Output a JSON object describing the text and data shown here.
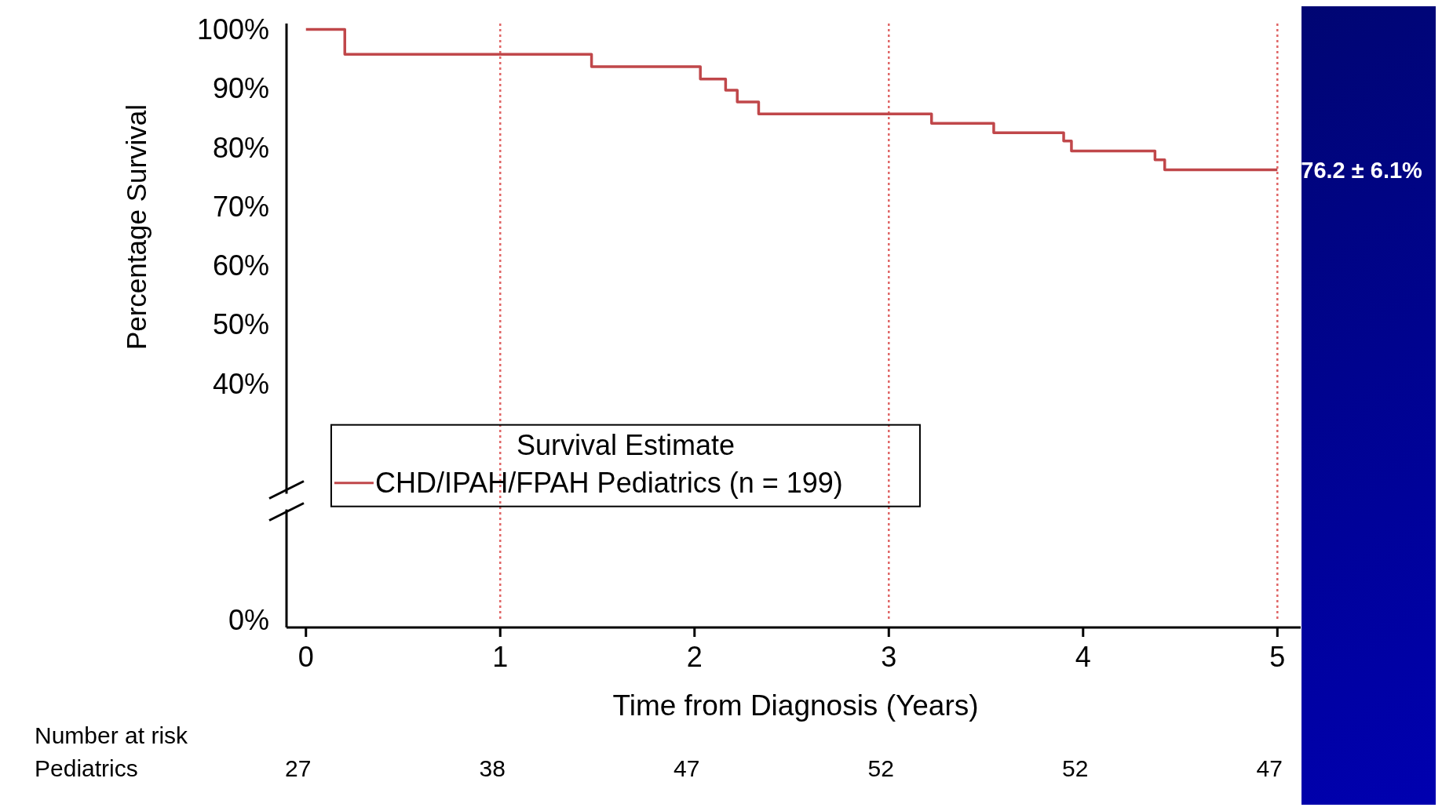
{
  "chart_data": {
    "type": "step",
    "xlabel": "Time from Diagnosis (Years)",
    "ylabel": "Percentage Survival",
    "legend_title": "Survival Estimate",
    "legend": "bottom",
    "xlim": [
      -0.1,
      5.12
    ],
    "xticks": [
      0,
      1,
      2,
      3,
      4,
      5
    ],
    "ylim": [
      0,
      101
    ],
    "yticks": [
      {
        "value": 0,
        "label": "0%"
      },
      {
        "value": 40,
        "label": "40%"
      },
      {
        "value": 50,
        "label": "50%"
      },
      {
        "value": 60,
        "label": "60%"
      },
      {
        "value": 70,
        "label": "70%"
      },
      {
        "value": 80,
        "label": "80%"
      },
      {
        "value": 90,
        "label": "90%"
      },
      {
        "value": 100,
        "label": "100%"
      }
    ],
    "series": [
      {
        "name": "CHD/IPAH/FPAH Pediatrics (n = 199)",
        "color": "#c0474a",
        "x": [
          0,
          0.2,
          1.47,
          2.03,
          2.16,
          2.22,
          2.33,
          3.22,
          3.54,
          3.9,
          3.94,
          4.37,
          4.42,
          5
        ],
        "values": [
          100,
          95.8,
          93.7,
          91.6,
          89.7,
          87.7,
          85.7,
          84.1,
          82.5,
          81.1,
          79.4,
          77.9,
          76.2,
          76.2
        ]
      }
    ],
    "ref_lines": [
      {
        "axis": "x",
        "value": 1,
        "color": "#e06666",
        "line_style": "dotted"
      },
      {
        "axis": "x",
        "value": 3,
        "color": "#e06666",
        "line_style": "dotted"
      },
      {
        "axis": "x",
        "value": 5,
        "color": "#e06666",
        "line_style": "dotted"
      }
    ],
    "annotations": [
      "Number at risk",
      "Pediatrics",
      "27",
      "38",
      "47",
      "52",
      "52",
      "47",
      {
        "text": "76.2 ± 6.1%",
        "x": 5,
        "y": 76.2
      }
    ]
  }
}
